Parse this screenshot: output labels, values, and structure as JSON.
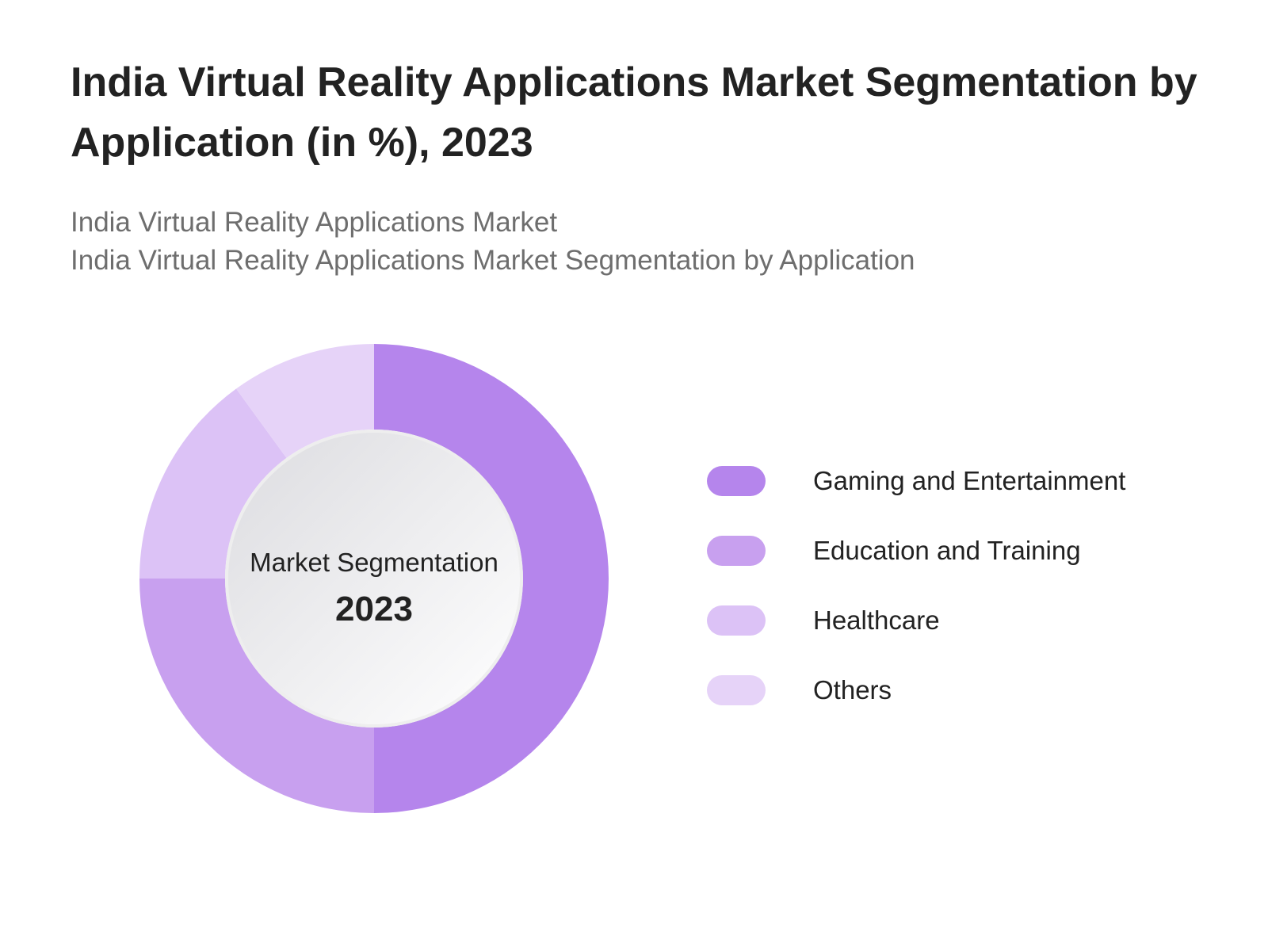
{
  "header": {
    "title": "India Virtual Reality Applications Market Segmentation by Application (in %), 2023",
    "subtitle_line1": "India Virtual Reality Applications Market",
    "subtitle_line2": "India Virtual Reality Applications Market Segmentation by Application"
  },
  "center": {
    "label": "Market Segmentation",
    "year": "2023"
  },
  "chart_data": {
    "type": "pie",
    "variant": "donut",
    "title": "India Virtual Reality Applications Market Segmentation by Application (in %), 2023",
    "categories": [
      "Gaming and Entertainment",
      "Education and Training",
      "Healthcare",
      "Others"
    ],
    "values": [
      50,
      25,
      15,
      10
    ],
    "unit": "%",
    "colors": [
      "#b585ec",
      "#c8a0ef",
      "#dcc2f6",
      "#e6d3f8"
    ],
    "start_angle": "12 o'clock",
    "direction": "clockwise",
    "legend_position": "right"
  },
  "legend": {
    "items": [
      {
        "label": "Gaming and Entertainment",
        "color": "#b585ec"
      },
      {
        "label": "Education and Training",
        "color": "#c8a0ef"
      },
      {
        "label": "Healthcare",
        "color": "#dcc2f6"
      },
      {
        "label": "Others",
        "color": "#e6d3f8"
      }
    ]
  }
}
